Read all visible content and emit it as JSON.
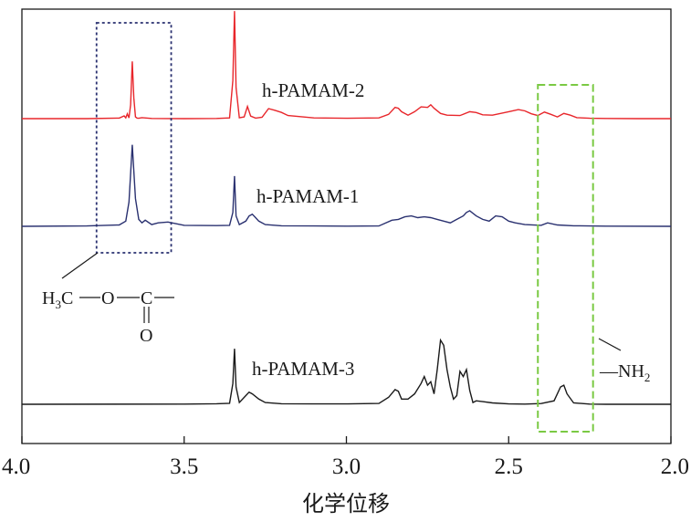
{
  "chart_data": {
    "type": "line",
    "title": "",
    "xlabel": "化学位移",
    "ylabel": "",
    "xlim": [
      4.0,
      2.0
    ],
    "x_reversed": true,
    "x_ticks": [
      4.0,
      3.5,
      3.0,
      2.5,
      2.0
    ],
    "x_tick_labels": [
      "4.0",
      "3.5",
      "3.0",
      "2.5",
      "2.0"
    ],
    "grid": false,
    "series": [
      {
        "name": "h-PAMAM-2",
        "label": "h-PAMAM-2",
        "color": "#e8262b",
        "offset": 2.0,
        "x": [
          4.0,
          3.8,
          3.7,
          3.685,
          3.68,
          3.675,
          3.67,
          3.665,
          3.66,
          3.655,
          3.65,
          3.645,
          3.64,
          3.63,
          3.6,
          3.5,
          3.4,
          3.36,
          3.35,
          3.345,
          3.34,
          3.33,
          3.315,
          3.305,
          3.295,
          3.28,
          3.26,
          3.24,
          3.22,
          3.2,
          3.18,
          3.1,
          3.0,
          2.9,
          2.87,
          2.85,
          2.84,
          2.83,
          2.81,
          2.79,
          2.77,
          2.75,
          2.74,
          2.73,
          2.71,
          2.69,
          2.65,
          2.62,
          2.6,
          2.58,
          2.55,
          2.5,
          2.47,
          2.45,
          2.43,
          2.41,
          2.39,
          2.37,
          2.35,
          2.33,
          2.31,
          2.29,
          2.25,
          2.2,
          2.1,
          2.0
        ],
        "y": [
          0.0,
          0.0,
          0.003,
          0.016,
          0.005,
          0.028,
          0.004,
          0.08,
          0.33,
          0.12,
          0.01,
          0.003,
          0.002,
          0.006,
          0.001,
          0.0,
          0.001,
          0.004,
          0.22,
          0.62,
          0.18,
          0.005,
          0.01,
          0.07,
          0.015,
          0.003,
          0.008,
          0.058,
          0.048,
          0.036,
          0.018,
          0.004,
          0.002,
          0.004,
          0.025,
          0.065,
          0.06,
          0.04,
          0.02,
          0.04,
          0.068,
          0.065,
          0.08,
          0.06,
          0.03,
          0.02,
          0.018,
          0.04,
          0.035,
          0.022,
          0.02,
          0.04,
          0.052,
          0.045,
          0.028,
          0.018,
          0.038,
          0.025,
          0.01,
          0.03,
          0.02,
          0.006,
          0.002,
          0.001,
          0.0,
          0.0
        ]
      },
      {
        "name": "h-PAMAM-1",
        "label": "h-PAMAM-1",
        "color": "#2a3170",
        "offset": 1.0,
        "x": [
          4.0,
          3.8,
          3.7,
          3.68,
          3.67,
          3.66,
          3.65,
          3.64,
          3.63,
          3.62,
          3.6,
          3.58,
          3.55,
          3.5,
          3.4,
          3.36,
          3.35,
          3.345,
          3.34,
          3.33,
          3.31,
          3.3,
          3.29,
          3.28,
          3.27,
          3.25,
          3.2,
          3.1,
          3.0,
          2.9,
          2.86,
          2.84,
          2.82,
          2.8,
          2.78,
          2.76,
          2.74,
          2.72,
          2.7,
          2.68,
          2.66,
          2.64,
          2.63,
          2.62,
          2.6,
          2.58,
          2.56,
          2.54,
          2.52,
          2.5,
          2.48,
          2.45,
          2.4,
          2.38,
          2.35,
          2.3,
          2.2,
          2.0
        ],
        "y": [
          0.0,
          0.002,
          0.008,
          0.03,
          0.14,
          0.47,
          0.16,
          0.04,
          0.02,
          0.035,
          0.01,
          0.02,
          0.025,
          0.006,
          0.004,
          0.006,
          0.08,
          0.29,
          0.06,
          0.01,
          0.03,
          0.06,
          0.07,
          0.05,
          0.03,
          0.01,
          0.003,
          0.002,
          0.001,
          0.002,
          0.035,
          0.04,
          0.055,
          0.06,
          0.05,
          0.055,
          0.05,
          0.04,
          0.03,
          0.02,
          0.04,
          0.06,
          0.08,
          0.09,
          0.06,
          0.04,
          0.03,
          0.06,
          0.055,
          0.03,
          0.02,
          0.01,
          0.006,
          0.02,
          0.008,
          0.003,
          0.001,
          0.0
        ]
      },
      {
        "name": "h-PAMAM-3",
        "label": "h-PAMAM-3",
        "color": "#1a1a1a",
        "offset": 0.0,
        "x": [
          4.0,
          3.5,
          3.4,
          3.36,
          3.35,
          3.345,
          3.34,
          3.33,
          3.31,
          3.3,
          3.29,
          3.27,
          3.25,
          3.2,
          3.1,
          3.0,
          2.9,
          2.87,
          2.85,
          2.84,
          2.83,
          2.81,
          2.79,
          2.77,
          2.76,
          2.75,
          2.74,
          2.73,
          2.72,
          2.71,
          2.7,
          2.69,
          2.68,
          2.67,
          2.66,
          2.65,
          2.64,
          2.63,
          2.62,
          2.61,
          2.6,
          2.58,
          2.55,
          2.5,
          2.45,
          2.4,
          2.36,
          2.34,
          2.33,
          2.32,
          2.3,
          2.25,
          2.2,
          2.0
        ],
        "y": [
          0.0,
          0.001,
          0.003,
          0.006,
          0.12,
          0.32,
          0.1,
          0.01,
          0.05,
          0.07,
          0.06,
          0.03,
          0.01,
          0.003,
          0.002,
          0.002,
          0.005,
          0.04,
          0.085,
          0.075,
          0.03,
          0.03,
          0.06,
          0.12,
          0.16,
          0.11,
          0.13,
          0.06,
          0.2,
          0.37,
          0.34,
          0.2,
          0.1,
          0.03,
          0.05,
          0.19,
          0.16,
          0.2,
          0.08,
          0.01,
          0.02,
          0.015,
          0.008,
          0.002,
          0.001,
          0.004,
          0.02,
          0.1,
          0.11,
          0.06,
          0.008,
          0.001,
          0.0,
          0.0
        ]
      }
    ],
    "annotations": [
      {
        "name": "ester-region-box",
        "style": "dotted",
        "color": "#2a3170",
        "x_range": [
          3.77,
          3.54
        ],
        "label_parts": [
          "H",
          "3",
          "C",
          "O",
          "C",
          "O"
        ],
        "label_meaning": "H3C—O—C(=O)—"
      },
      {
        "name": "amine-region-box",
        "style": "dashed",
        "color": "#7ac943",
        "x_range": [
          2.41,
          2.24
        ],
        "label_parts": [
          "—NH",
          "2"
        ],
        "label_meaning": "—NH2"
      }
    ]
  }
}
